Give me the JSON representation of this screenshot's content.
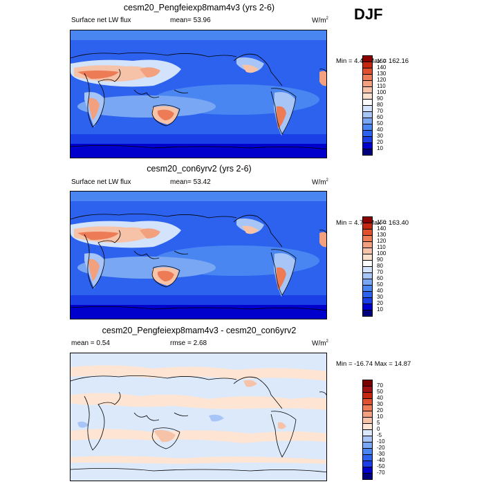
{
  "season_label": "DJF",
  "units_base": "W/m",
  "units_exp": "2",
  "panels": [
    {
      "id": "exp",
      "title": "cesm20_Pengfeiexp8mam4v3 (yrs 2-6)",
      "variable": "Surface net LW flux",
      "mean_text": "mean=  53.96",
      "minmax": "Min =   4.47 Max = 162.16"
    },
    {
      "id": "ctl",
      "title": "cesm20_con6yrv2 (yrs 2-6)",
      "variable": "Surface net LW flux",
      "mean_text": "mean=  53.42",
      "minmax": "Min =   4.73 Max = 163.40"
    },
    {
      "id": "diff",
      "title": "cesm20_Pengfeiexp8mam4v3 - cesm20_con6yrv2",
      "mean_text": "mean =   0.54",
      "rmse_text": "rmse =   2.68",
      "minmax": "Min = -16.74 Max =  14.87"
    }
  ],
  "chart_data": [
    {
      "type": "heatmap",
      "title": "cesm20_Pengfeiexp8mam4v3 (yrs 2-6)",
      "variable": "Surface net LW flux",
      "units": "W/m2",
      "mean": 53.96,
      "min": 4.47,
      "max": 162.16,
      "colorbar": {
        "levels": [
          10,
          20,
          30,
          40,
          50,
          60,
          70,
          80,
          90,
          100,
          110,
          120,
          130,
          140,
          150
        ],
        "colors": [
          "#00007f",
          "#0000cc",
          "#1b3fe6",
          "#2c62ee",
          "#4a86f2",
          "#7aa7f3",
          "#a8c5f7",
          "#d3e3fb",
          "#fbfbfb",
          "#f9dfcc",
          "#f6c2a8",
          "#f2a07e",
          "#ec7b56",
          "#e0502e",
          "#c4260f",
          "#8b0000"
        ]
      }
    },
    {
      "type": "heatmap",
      "title": "cesm20_con6yrv2 (yrs 2-6)",
      "variable": "Surface net LW flux",
      "units": "W/m2",
      "mean": 53.42,
      "min": 4.73,
      "max": 163.4,
      "colorbar": {
        "levels": [
          10,
          20,
          30,
          40,
          50,
          60,
          70,
          80,
          90,
          100,
          110,
          120,
          130,
          140,
          150
        ],
        "colors": [
          "#00007f",
          "#0000cc",
          "#1b3fe6",
          "#2c62ee",
          "#4a86f2",
          "#7aa7f3",
          "#a8c5f7",
          "#d3e3fb",
          "#fbfbfb",
          "#f9dfcc",
          "#f6c2a8",
          "#f2a07e",
          "#ec7b56",
          "#e0502e",
          "#c4260f",
          "#8b0000"
        ]
      }
    },
    {
      "type": "heatmap",
      "title": "cesm20_Pengfeiexp8mam4v3 - cesm20_con6yrv2",
      "units": "W/m2",
      "mean": 0.54,
      "rmse": 2.68,
      "min": -16.74,
      "max": 14.87,
      "colorbar": {
        "levels": [
          -70,
          -50,
          -40,
          -30,
          -20,
          -10,
          -5,
          0,
          5,
          10,
          20,
          30,
          40,
          50,
          70
        ],
        "colors": [
          "#00007f",
          "#0000cc",
          "#1b3fe6",
          "#2c62ee",
          "#4a86f2",
          "#7aa7f3",
          "#a8c5f7",
          "#dce9fb",
          "#fde4d3",
          "#f6c2a8",
          "#f2a07e",
          "#ec7b56",
          "#e0502e",
          "#c4260f",
          "#a01010",
          "#7a0000"
        ]
      }
    }
  ]
}
